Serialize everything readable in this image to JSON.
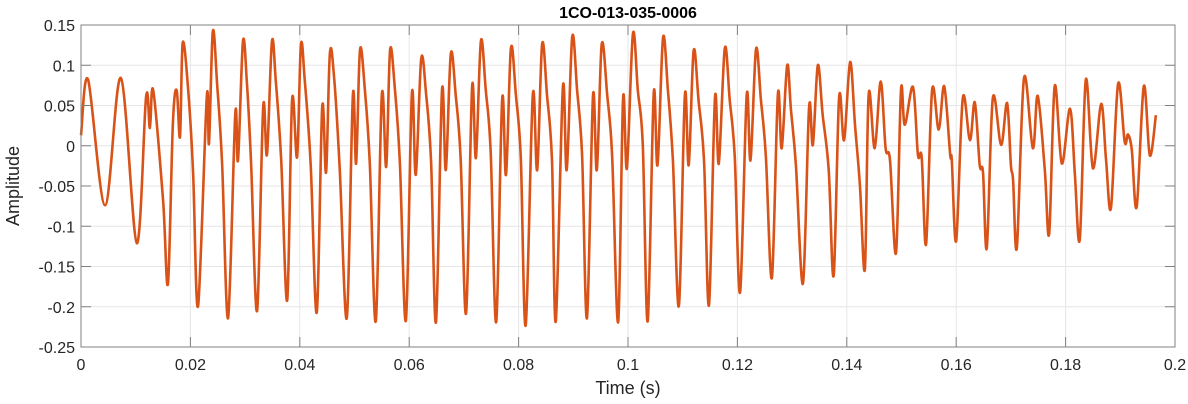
{
  "chart_data": {
    "type": "line",
    "title": "1CO-013-035-0006",
    "xlabel": "Time (s)",
    "ylabel": "Amplitude",
    "xlim": [
      0,
      0.2
    ],
    "ylim": [
      -0.25,
      0.15
    ],
    "xticks": [
      "0",
      "0.02",
      "0.04",
      "0.06",
      "0.08",
      "0.1",
      "0.12",
      "0.14",
      "0.16",
      "0.18",
      "0.2"
    ],
    "xtick_values": [
      0,
      0.02,
      0.04,
      0.06,
      0.08,
      0.1,
      0.12,
      0.14,
      0.16,
      0.18,
      0.2
    ],
    "yticks": [
      "0.15",
      "0.1",
      "0.05",
      "0",
      "-0.05",
      "-0.1",
      "-0.15",
      "-0.2",
      "-0.25"
    ],
    "ytick_values": [
      0.15,
      0.1,
      0.05,
      0,
      -0.05,
      -0.1,
      -0.15,
      -0.2,
      -0.25
    ],
    "grid": true,
    "line_color": "#D95319",
    "series": [
      {
        "points": [
          [
            0,
            0.013
          ],
          [
            0.0013,
            0.082
          ],
          [
            0.0044,
            -0.074
          ],
          [
            0.0073,
            0.084
          ],
          [
            0.0102,
            -0.121
          ],
          [
            0.0119,
            0.061
          ],
          [
            0.0126,
            0.022
          ],
          [
            0.0132,
            0.069
          ],
          [
            0.015,
            -0.068
          ],
          [
            0.0159,
            -0.171
          ],
          [
            0.0168,
            0.028
          ],
          [
            0.0175,
            0.069
          ],
          [
            0.0181,
            0.011
          ],
          [
            0.0186,
            0.128
          ],
          [
            0.0196,
            0.069
          ],
          [
            0.0205,
            -0.034
          ],
          [
            0.0214,
            -0.199
          ],
          [
            0.023,
            0.061
          ],
          [
            0.0234,
            0.003
          ],
          [
            0.0241,
            0.142
          ],
          [
            0.0249,
            0.075
          ],
          [
            0.0258,
            -0.022
          ],
          [
            0.0269,
            -0.214
          ],
          [
            0.0282,
            0.04
          ],
          [
            0.0287,
            -0.018
          ],
          [
            0.0296,
            0.129
          ],
          [
            0.0303,
            0.082
          ],
          [
            0.0311,
            -0.022
          ],
          [
            0.0322,
            -0.205
          ],
          [
            0.0333,
            0.048
          ],
          [
            0.034,
            -0.011
          ],
          [
            0.0349,
            0.129
          ],
          [
            0.0356,
            0.082
          ],
          [
            0.0366,
            -0.018
          ],
          [
            0.0377,
            -0.192
          ],
          [
            0.0386,
            0.057
          ],
          [
            0.0395,
            -0.014
          ],
          [
            0.0402,
            0.125
          ],
          [
            0.0409,
            0.082
          ],
          [
            0.042,
            -0.024
          ],
          [
            0.0431,
            -0.207
          ],
          [
            0.0441,
            0.048
          ],
          [
            0.0448,
            -0.033
          ],
          [
            0.0455,
            0.115
          ],
          [
            0.0463,
            0.082
          ],
          [
            0.0473,
            -0.028
          ],
          [
            0.0486,
            -0.214
          ],
          [
            0.0497,
            0.063
          ],
          [
            0.0503,
            -0.022
          ],
          [
            0.051,
            0.119
          ],
          [
            0.0519,
            0.069
          ],
          [
            0.0528,
            -0.022
          ],
          [
            0.0539,
            -0.218
          ],
          [
            0.055,
            0.063
          ],
          [
            0.0558,
            -0.026
          ],
          [
            0.0565,
            0.119
          ],
          [
            0.0574,
            0.069
          ],
          [
            0.0583,
            -0.022
          ],
          [
            0.0594,
            -0.217
          ],
          [
            0.0605,
            0.065
          ],
          [
            0.0612,
            -0.036
          ],
          [
            0.0622,
            0.108
          ],
          [
            0.0631,
            0.063
          ],
          [
            0.064,
            -0.02
          ],
          [
            0.0649,
            -0.219
          ],
          [
            0.066,
            0.069
          ],
          [
            0.0667,
            -0.03
          ],
          [
            0.0676,
            0.114
          ],
          [
            0.0685,
            0.063
          ],
          [
            0.0694,
            -0.015
          ],
          [
            0.0704,
            -0.208
          ],
          [
            0.0715,
            0.073
          ],
          [
            0.0722,
            -0.015
          ],
          [
            0.0731,
            0.13
          ],
          [
            0.074,
            0.069
          ],
          [
            0.0749,
            -0.008
          ],
          [
            0.0759,
            -0.219
          ],
          [
            0.077,
            0.058
          ],
          [
            0.0777,
            -0.036
          ],
          [
            0.0786,
            0.121
          ],
          [
            0.0795,
            0.063
          ],
          [
            0.0804,
            -0.015
          ],
          [
            0.0813,
            -0.223
          ],
          [
            0.0826,
            0.063
          ],
          [
            0.0834,
            -0.03
          ],
          [
            0.0843,
            0.126
          ],
          [
            0.0852,
            0.063
          ],
          [
            0.0861,
            -0.018
          ],
          [
            0.0868,
            -0.218
          ],
          [
            0.0881,
            0.073
          ],
          [
            0.0888,
            -0.03
          ],
          [
            0.0898,
            0.135
          ],
          [
            0.0907,
            0.069
          ],
          [
            0.0916,
            -0.012
          ],
          [
            0.0925,
            -0.214
          ],
          [
            0.0936,
            0.062
          ],
          [
            0.0943,
            -0.03
          ],
          [
            0.0952,
            0.126
          ],
          [
            0.0962,
            0.063
          ],
          [
            0.0971,
            -0.012
          ],
          [
            0.0982,
            -0.219
          ],
          [
            0.0991,
            0.059
          ],
          [
            0.0998,
            -0.028
          ],
          [
            0.1009,
            0.139
          ],
          [
            0.1018,
            0.069
          ],
          [
            0.1027,
            0.001
          ],
          [
            0.1036,
            -0.218
          ],
          [
            0.1047,
            0.065
          ],
          [
            0.1054,
            -0.024
          ],
          [
            0.1064,
            0.134
          ],
          [
            0.1073,
            0.069
          ],
          [
            0.1082,
            -0.018
          ],
          [
            0.1093,
            -0.199
          ],
          [
            0.1104,
            0.063
          ],
          [
            0.1111,
            -0.024
          ],
          [
            0.112,
            0.118
          ],
          [
            0.1129,
            0.056
          ],
          [
            0.1139,
            -0.018
          ],
          [
            0.1148,
            -0.198
          ],
          [
            0.1159,
            0.06
          ],
          [
            0.1166,
            -0.022
          ],
          [
            0.1177,
            0.121
          ],
          [
            0.1186,
            0.057
          ],
          [
            0.1195,
            -0.012
          ],
          [
            0.1205,
            -0.182
          ],
          [
            0.1217,
            0.063
          ],
          [
            0.1224,
            -0.018
          ],
          [
            0.1234,
            0.12
          ],
          [
            0.1243,
            0.057
          ],
          [
            0.1252,
            -0.012
          ],
          [
            0.1263,
            -0.164
          ],
          [
            0.1274,
            0.064
          ],
          [
            0.1281,
            -0.003
          ],
          [
            0.1291,
            0.1
          ],
          [
            0.1298,
            0.044
          ],
          [
            0.1307,
            -0.024
          ],
          [
            0.132,
            -0.171
          ],
          [
            0.1331,
            0.048
          ],
          [
            0.1338,
            0.001
          ],
          [
            0.1347,
            0.1
          ],
          [
            0.1356,
            0.038
          ],
          [
            0.1367,
            -0.03
          ],
          [
            0.1376,
            -0.161
          ],
          [
            0.1386,
            0.06
          ],
          [
            0.1395,
            0.007
          ],
          [
            0.1406,
            0.104
          ],
          [
            0.1415,
            0.026
          ],
          [
            0.1424,
            -0.049
          ],
          [
            0.1433,
            -0.153
          ],
          [
            0.144,
            0.064
          ],
          [
            0.1451,
            -0.003
          ],
          [
            0.1462,
            0.08
          ],
          [
            0.1471,
            -0.003
          ],
          [
            0.1479,
            -0.018
          ],
          [
            0.149,
            -0.133
          ],
          [
            0.1499,
            0.069
          ],
          [
            0.1506,
            0.026
          ],
          [
            0.1521,
            0.073
          ],
          [
            0.153,
            -0.011
          ],
          [
            0.1537,
            -0.015
          ],
          [
            0.1545,
            -0.122
          ],
          [
            0.1556,
            0.069
          ],
          [
            0.1568,
            0.02
          ],
          [
            0.1578,
            0.074
          ],
          [
            0.1589,
            -0.011
          ],
          [
            0.1592,
            -0.018
          ],
          [
            0.16,
            -0.118
          ],
          [
            0.1612,
            0.059
          ],
          [
            0.1625,
            0.007
          ],
          [
            0.1634,
            0.054
          ],
          [
            0.1643,
            -0.024
          ],
          [
            0.1649,
            -0.033
          ],
          [
            0.1656,
            -0.127
          ],
          [
            0.1667,
            0.059
          ],
          [
            0.1682,
            0.001
          ],
          [
            0.1693,
            0.053
          ],
          [
            0.17,
            -0.024
          ],
          [
            0.1704,
            -0.043
          ],
          [
            0.1711,
            -0.126
          ],
          [
            0.1724,
            0.084
          ],
          [
            0.174,
            -0.003
          ],
          [
            0.1749,
            0.062
          ],
          [
            0.1762,
            -0.03
          ],
          [
            0.177,
            -0.109
          ],
          [
            0.178,
            0.074
          ],
          [
            0.1793,
            -0.022
          ],
          [
            0.1808,
            0.046
          ],
          [
            0.1817,
            -0.036
          ],
          [
            0.1826,
            -0.116
          ],
          [
            0.1837,
            0.082
          ],
          [
            0.185,
            -0.028
          ],
          [
            0.1865,
            0.052
          ],
          [
            0.1874,
            -0.018
          ],
          [
            0.1883,
            -0.077
          ],
          [
            0.1896,
            0.077
          ],
          [
            0.1908,
            0.005
          ],
          [
            0.1914,
            0.014
          ],
          [
            0.1921,
            -0.005
          ],
          [
            0.193,
            -0.076
          ],
          [
            0.1943,
            0.074
          ],
          [
            0.1954,
            -0.012
          ],
          [
            0.1965,
            0.038
          ]
        ]
      }
    ]
  }
}
